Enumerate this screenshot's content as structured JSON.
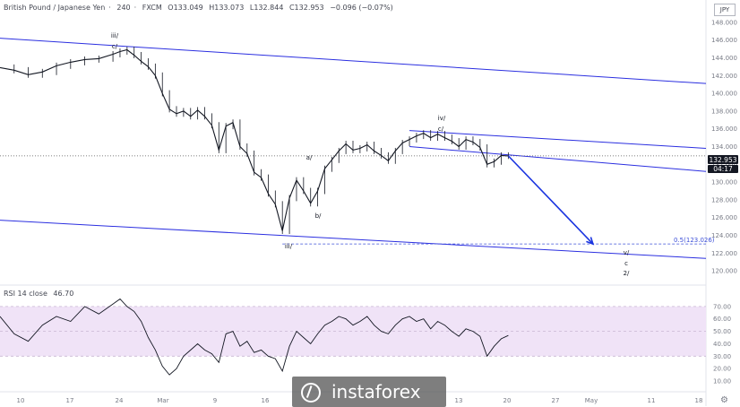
{
  "header": {
    "symbol": "British Pound / Japanese Yen",
    "interval": "240",
    "source": "FXCM",
    "open": "O133.049",
    "high": "H133.073",
    "low": "L132.844",
    "close": "C132.953",
    "change": "−0.096 (−0.07%)"
  },
  "currency_label": "JPY",
  "price_tag": "132.953",
  "countdown_tag": "04:17",
  "rsi_header": {
    "name": "RSI 14 close",
    "value": "46.70"
  },
  "fib_label": "0.5(123.026)",
  "wave_labels": [
    "iii/",
    "c/",
    "iv/",
    "c/",
    "a/",
    "b/",
    "iii/",
    "v/",
    "c",
    "2/"
  ],
  "colors": {
    "channel": "#2b2fe0",
    "arrow": "#1a34e0",
    "fib": "#3d50d8",
    "price_line": "#555555",
    "price_tag_bg": "#131722",
    "candle": "#131722",
    "rsi_band": "#f0e3f7",
    "rsi_line": "#131722",
    "grid_text": "#787b86"
  },
  "logo_text": "instaforex",
  "chart_data": [
    {
      "type": "candlestick",
      "title": "British Pound / Japanese Yen · 240 · FXCM",
      "x_ticks": [
        "10",
        "17",
        "24",
        "Mar",
        "9",
        "16",
        "13",
        "20",
        "27",
        "May",
        "11",
        "18"
      ],
      "y_ticks": [
        120,
        122,
        124,
        126,
        128,
        130,
        132,
        134,
        136,
        138,
        140,
        142,
        144,
        146,
        148
      ],
      "ylim": [
        119,
        149.5
      ],
      "last_price": 132.953,
      "x_range_days": [
        0,
        100
      ],
      "series": [
        {
          "name": "GBPJPY",
          "points": [
            [
              0,
              142.9
            ],
            [
              2,
              142.6
            ],
            [
              4,
              142.1
            ],
            [
              6,
              142.4
            ],
            [
              8,
              143.1
            ],
            [
              10,
              143.5
            ],
            [
              12,
              143.8
            ],
            [
              14,
              143.9
            ],
            [
              16,
              144.4
            ],
            [
              17,
              144.7
            ],
            [
              18,
              144.9
            ],
            [
              19,
              144.3
            ],
            [
              20,
              143.6
            ],
            [
              21,
              143.0
            ],
            [
              22,
              142.0
            ],
            [
              23,
              140.0
            ],
            [
              24,
              138.2
            ],
            [
              25,
              137.7
            ],
            [
              26,
              138.0
            ],
            [
              27,
              137.4
            ],
            [
              28,
              138.1
            ],
            [
              29,
              137.4
            ],
            [
              30,
              136.4
            ],
            [
              31,
              133.6
            ],
            [
              32,
              136.3
            ],
            [
              33,
              136.7
            ],
            [
              34,
              134.0
            ],
            [
              35,
              133.2
            ],
            [
              36,
              131.1
            ],
            [
              37,
              130.5
            ],
            [
              38,
              128.7
            ],
            [
              39,
              127.5
            ],
            [
              40,
              124.5
            ],
            [
              41,
              128.2
            ],
            [
              42,
              130.2
            ],
            [
              43,
              129.0
            ],
            [
              44,
              127.6
            ],
            [
              45,
              129.0
            ],
            [
              46,
              131.5
            ],
            [
              47,
              132.5
            ],
            [
              48,
              133.5
            ],
            [
              49,
              134.3
            ],
            [
              50,
              133.6
            ],
            [
              51,
              133.8
            ],
            [
              52,
              134.2
            ],
            [
              53,
              133.5
            ],
            [
              54,
              133.0
            ],
            [
              55,
              132.4
            ],
            [
              56,
              133.5
            ],
            [
              57,
              134.4
            ],
            [
              58,
              134.8
            ],
            [
              59,
              135.2
            ],
            [
              60,
              135.5
            ],
            [
              61,
              135.0
            ],
            [
              62,
              135.4
            ],
            [
              63,
              135.0
            ],
            [
              64,
              134.6
            ],
            [
              65,
              134.0
            ],
            [
              66,
              134.8
            ],
            [
              67,
              134.5
            ],
            [
              68,
              133.9
            ],
            [
              69,
              132.0
            ],
            [
              70,
              132.3
            ],
            [
              71,
              133.0
            ],
            [
              72,
              132.95
            ]
          ]
        }
      ],
      "annotations": {
        "channel_upper_outer": [
          [
            0,
            146.2
          ],
          [
            100,
            141.1
          ]
        ],
        "channel_lower_outer": [
          [
            0,
            125.7
          ],
          [
            100,
            121.4
          ]
        ],
        "channel_upper_inner": [
          [
            58,
            135.8
          ],
          [
            100,
            133.8
          ]
        ],
        "channel_lower_inner": [
          [
            58,
            134.0
          ],
          [
            100,
            131.2
          ]
        ],
        "projection_arrow": [
          [
            72,
            132.95
          ],
          [
            84,
            123.026
          ]
        ],
        "fib_level": 123.026
      }
    },
    {
      "type": "line",
      "title": "RSI 14 close",
      "value": 46.7,
      "y_ticks": [
        10,
        20,
        30,
        40,
        50,
        60,
        70
      ],
      "ylim": [
        5,
        80
      ],
      "band": [
        30,
        70
      ],
      "series": [
        {
          "name": "RSI 14 close",
          "points": [
            [
              0,
              62
            ],
            [
              2,
              48
            ],
            [
              4,
              42
            ],
            [
              6,
              55
            ],
            [
              8,
              62
            ],
            [
              10,
              58
            ],
            [
              12,
              70
            ],
            [
              14,
              64
            ],
            [
              16,
              72
            ],
            [
              17,
              76
            ],
            [
              18,
              70
            ],
            [
              19,
              66
            ],
            [
              20,
              58
            ],
            [
              21,
              45
            ],
            [
              22,
              35
            ],
            [
              23,
              22
            ],
            [
              24,
              15
            ],
            [
              25,
              20
            ],
            [
              26,
              30
            ],
            [
              27,
              35
            ],
            [
              28,
              40
            ],
            [
              29,
              35
            ],
            [
              30,
              32
            ],
            [
              31,
              25
            ],
            [
              32,
              48
            ],
            [
              33,
              50
            ],
            [
              34,
              38
            ],
            [
              35,
              42
            ],
            [
              36,
              33
            ],
            [
              37,
              35
            ],
            [
              38,
              30
            ],
            [
              39,
              28
            ],
            [
              40,
              18
            ],
            [
              41,
              38
            ],
            [
              42,
              50
            ],
            [
              43,
              45
            ],
            [
              44,
              40
            ],
            [
              45,
              48
            ],
            [
              46,
              55
            ],
            [
              47,
              58
            ],
            [
              48,
              62
            ],
            [
              49,
              60
            ],
            [
              50,
              55
            ],
            [
              51,
              58
            ],
            [
              52,
              62
            ],
            [
              53,
              55
            ],
            [
              54,
              50
            ],
            [
              55,
              48
            ],
            [
              56,
              55
            ],
            [
              57,
              60
            ],
            [
              58,
              62
            ],
            [
              59,
              58
            ],
            [
              60,
              60
            ],
            [
              61,
              52
            ],
            [
              62,
              58
            ],
            [
              63,
              55
            ],
            [
              64,
              50
            ],
            [
              65,
              46
            ],
            [
              66,
              52
            ],
            [
              67,
              50
            ],
            [
              68,
              46
            ],
            [
              69,
              30
            ],
            [
              70,
              38
            ],
            [
              71,
              44
            ],
            [
              72,
              46.7
            ]
          ]
        }
      ]
    }
  ]
}
